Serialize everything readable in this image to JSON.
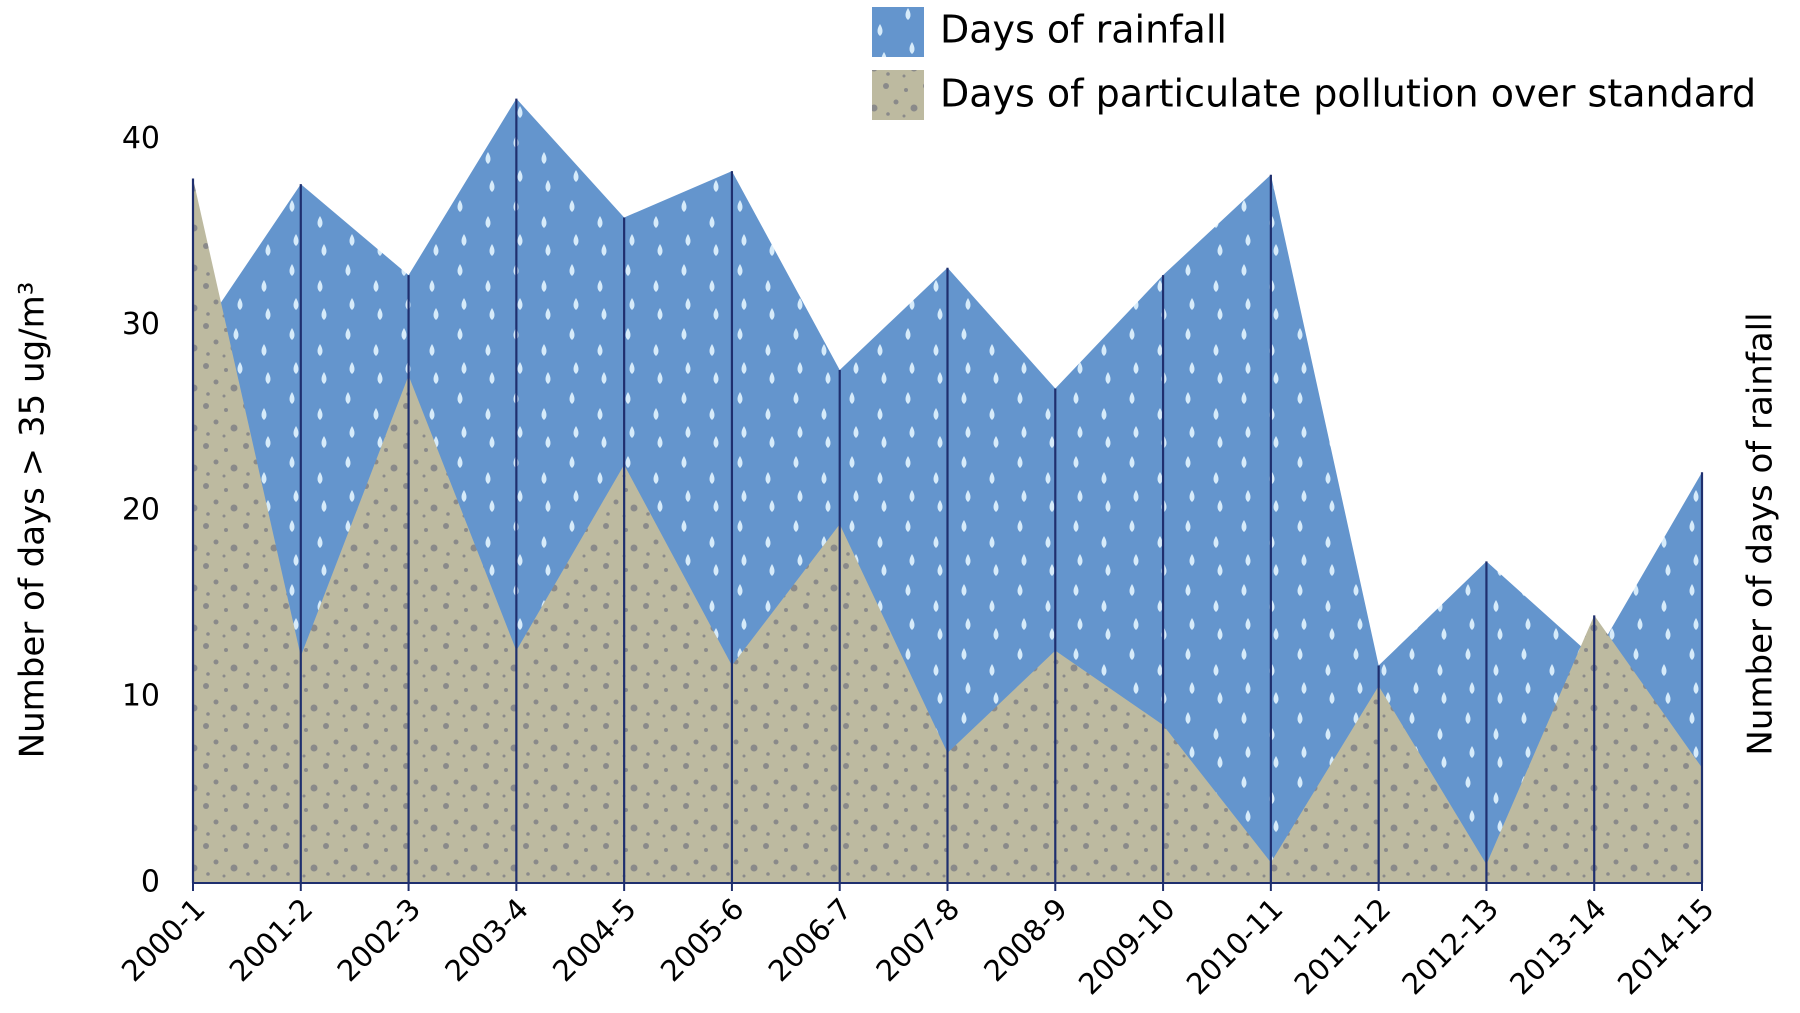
{
  "chart_data": {
    "type": "area",
    "y_label": "Number of days > 35 ug/m³",
    "y2_label": "Number of days of rainfall",
    "categories": [
      "2000-1",
      "2001-2",
      "2002-3",
      "2003-4",
      "2004-5",
      "2005-6",
      "2006-7",
      "2007-8",
      "2008-9",
      "2009-10",
      "2010-11",
      "2011-12",
      "2012-13",
      "2013-14",
      "2014-15"
    ],
    "series": [
      {
        "name": "Days of rainfall",
        "color": "#6495cd",
        "values": [
          29,
          37.6,
          32.7,
          42.2,
          35.8,
          38.3,
          27.6,
          33.1,
          26.6,
          32.7,
          38.1,
          11.7,
          17.3,
          12.1,
          22.1
        ]
      },
      {
        "name": "Days of particulate pollution over standard",
        "color": "#bdbaa0",
        "values": [
          37.9,
          12.2,
          27.3,
          12.5,
          22.5,
          11.7,
          19.3,
          7.0,
          12.5,
          8.5,
          1.1,
          10.6,
          1.0,
          14.4,
          6.2
        ]
      }
    ],
    "ylim": [
      0,
      42.5
    ],
    "yticks": [
      0,
      10,
      20,
      30,
      40
    ],
    "line_color": "#1f2f6e"
  }
}
